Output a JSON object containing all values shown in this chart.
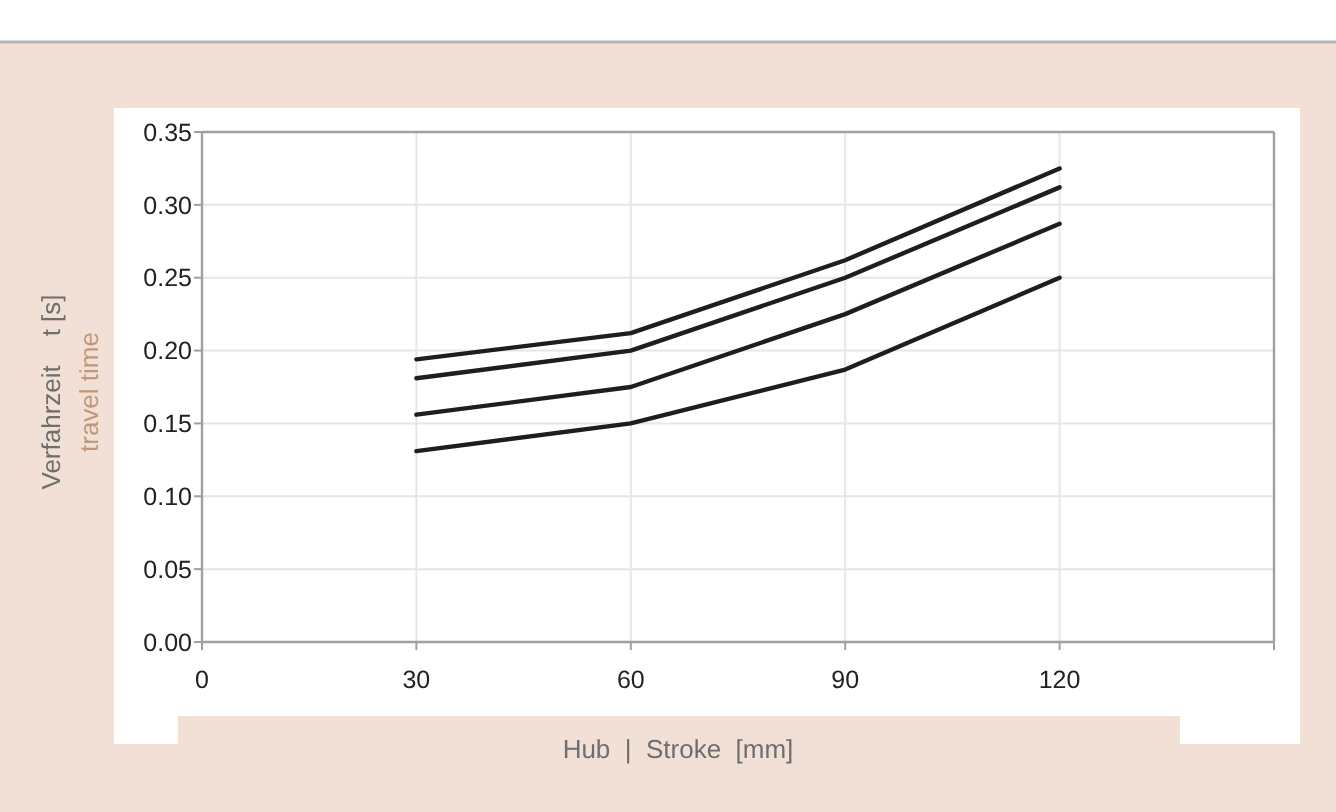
{
  "chart_data": {
    "type": "line",
    "xlabel": "Hub  |  Stroke  [mm]",
    "ylabel": "Verfahrzeit    t [s]\ntravel time",
    "x": [
      30,
      60,
      90,
      120
    ],
    "series": [
      {
        "color": "#1e1e1e",
        "values": [
          0.194,
          0.212,
          0.262,
          0.325
        ]
      },
      {
        "color": "#1e1e1e",
        "values": [
          0.181,
          0.2,
          0.25,
          0.312
        ]
      },
      {
        "color": "#1e1e1e",
        "values": [
          0.156,
          0.175,
          0.225,
          0.287
        ]
      },
      {
        "color": "#1e1e1e",
        "values": [
          0.131,
          0.15,
          0.187,
          0.25
        ]
      }
    ],
    "xlim": [
      0,
      150
    ],
    "xticks": [
      0,
      30,
      60,
      90,
      120,
      {
        "value": 150,
        "label": null
      }
    ],
    "ylim": [
      0,
      0.35
    ],
    "yticks": [
      {
        "value": 0,
        "label": "0.00"
      },
      {
        "value": 0.05,
        "label": "0.05"
      },
      {
        "value": 0.1,
        "label": "0.10"
      },
      {
        "value": 0.15,
        "label": "0.15"
      },
      {
        "value": 0.2,
        "label": "0.20"
      },
      {
        "value": 0.25,
        "label": "0.25"
      },
      {
        "value": 0.3,
        "label": "0.30"
      },
      {
        "value": 0.35,
        "label": "0.35"
      }
    ],
    "grid": true,
    "line_style": "solid",
    "marker": "none"
  }
}
